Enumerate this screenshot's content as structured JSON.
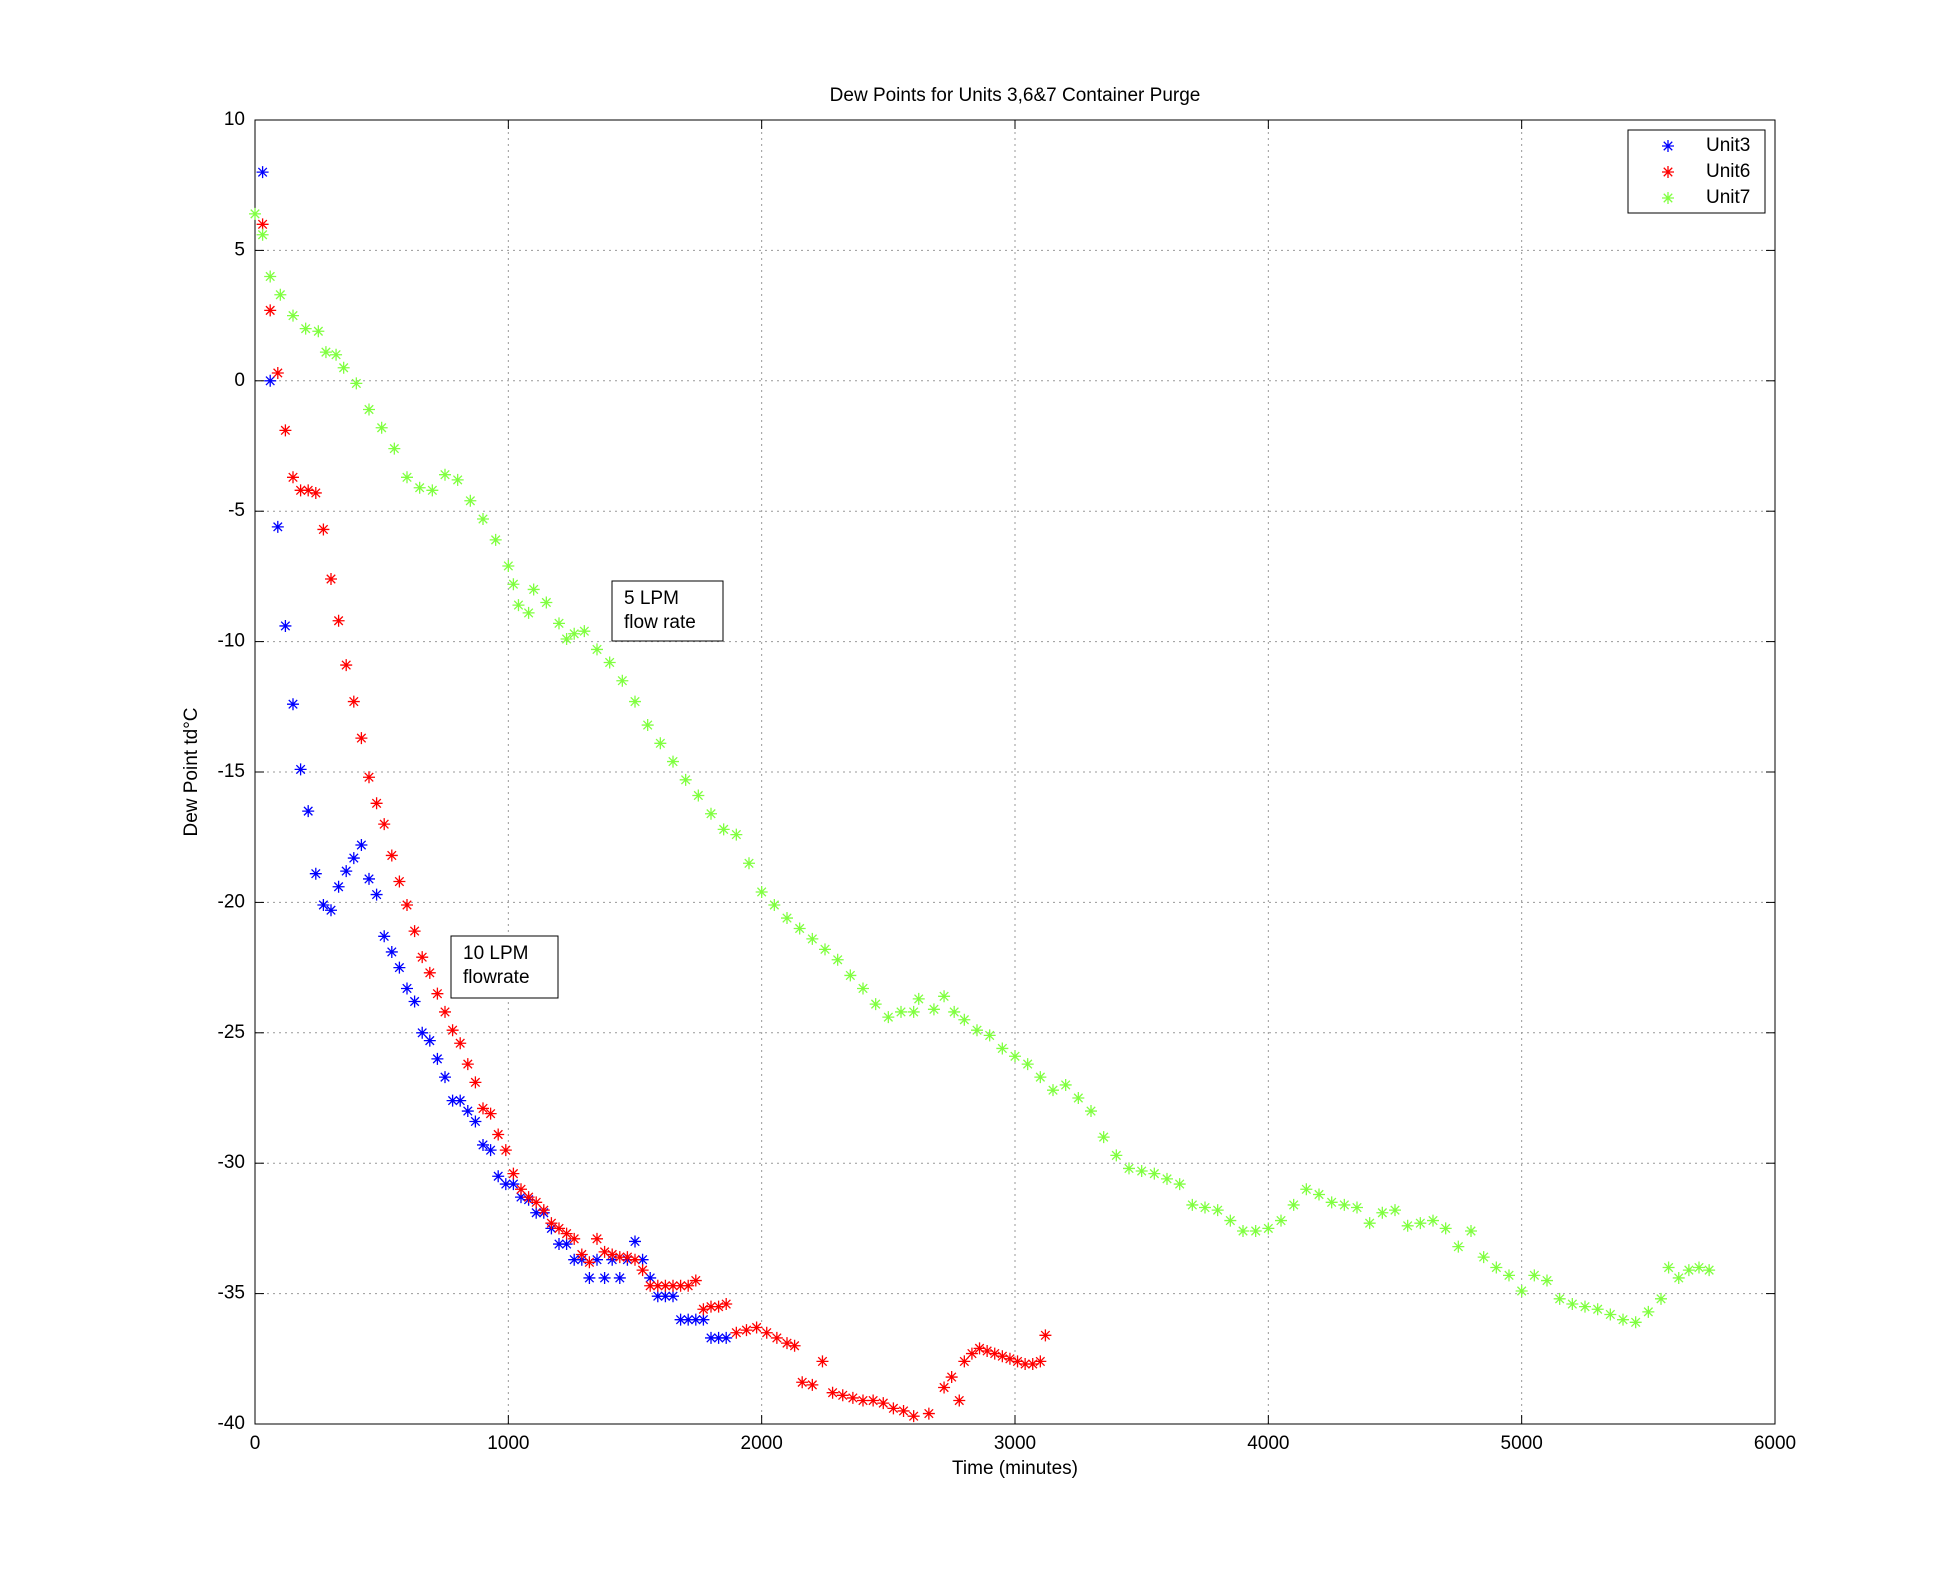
{
  "chart_data": {
    "type": "scatter",
    "title": "Dew Points for Units 3,6&7 Container Purge",
    "x_label": "Time (minutes)",
    "y_label": "Dew Point td°C",
    "xlim": [
      0,
      6000
    ],
    "xticks": [
      0,
      1000,
      2000,
      3000,
      4000,
      5000,
      6000
    ],
    "ylim": [
      -40,
      10
    ],
    "yticks": [
      -40,
      -35,
      -30,
      -25,
      -20,
      -15,
      -10,
      -5,
      0,
      5,
      10
    ],
    "grid": true,
    "legend": "top-right",
    "marker": "asterisk",
    "annotations": [
      {
        "lines": [
          "5 LPM",
          "flow rate"
        ]
      },
      {
        "lines": [
          "10 LPM",
          "flowrate"
        ]
      }
    ],
    "series": [
      {
        "name": "Unit3",
        "color": "#0000ff",
        "x": [
          30,
          60,
          90,
          120,
          150,
          180,
          210,
          240,
          270,
          300,
          330,
          360,
          390,
          420,
          450,
          480,
          510,
          540,
          570,
          600,
          630,
          660,
          690,
          720,
          750,
          780,
          810,
          840,
          870,
          900,
          930,
          960,
          990,
          1020,
          1050,
          1080,
          1110,
          1140,
          1170,
          1200,
          1230,
          1260,
          1290,
          1320,
          1350,
          1380,
          1410,
          1440,
          1470,
          1500,
          1530,
          1560,
          1590,
          1620,
          1650,
          1680,
          1710,
          1740,
          1770,
          1800,
          1830,
          1860
        ],
        "values": [
          8,
          0,
          -5.6,
          -9.4,
          -12.4,
          -14.9,
          -16.5,
          -18.9,
          -20.1,
          -20.3,
          -19.4,
          -18.8,
          -18.3,
          -17.8,
          -19.1,
          -19.7,
          -21.3,
          -21.9,
          -22.5,
          -23.3,
          -23.8,
          -25,
          -25.3,
          -26,
          -26.7,
          -27.6,
          -27.6,
          -28,
          -28.4,
          -29.3,
          -29.5,
          -30.5,
          -30.8,
          -30.8,
          -31.3,
          -31.4,
          -31.9,
          -31.9,
          -32.5,
          -33.1,
          -33.1,
          -33.7,
          -33.7,
          -34.4,
          -33.7,
          -34.4,
          -33.7,
          -34.4,
          -33.7,
          -33,
          -33.7,
          -34.4,
          -35.1,
          -35.1,
          -35.1,
          -36,
          -36,
          -36,
          -36,
          -36.7,
          -36.7,
          -36.7
        ]
      },
      {
        "name": "Unit6",
        "color": "#ff0000",
        "x": [
          30,
          60,
          90,
          120,
          150,
          180,
          210,
          240,
          270,
          300,
          330,
          360,
          390,
          420,
          450,
          480,
          510,
          540,
          570,
          600,
          630,
          660,
          690,
          720,
          750,
          780,
          810,
          840,
          870,
          900,
          930,
          960,
          990,
          1020,
          1050,
          1080,
          1110,
          1140,
          1170,
          1200,
          1230,
          1260,
          1290,
          1320,
          1350,
          1380,
          1410,
          1440,
          1470,
          1500,
          1530,
          1560,
          1590,
          1620,
          1650,
          1680,
          1710,
          1740,
          1770,
          1800,
          1830,
          1860,
          1900,
          1940,
          1980,
          2020,
          2060,
          2100,
          2130,
          2160,
          2200,
          2240,
          2280,
          2320,
          2360,
          2400,
          2440,
          2480,
          2520,
          2560,
          2600,
          2660,
          2720,
          2750,
          2780,
          2800,
          2830,
          2860,
          2890,
          2920,
          2950,
          2980,
          3010,
          3040,
          3070,
          3100,
          3120
        ],
        "values": [
          6,
          2.7,
          0.3,
          -1.9,
          -3.7,
          -4.2,
          -4.2,
          -4.3,
          -5.7,
          -7.6,
          -9.2,
          -10.9,
          -12.3,
          -13.7,
          -15.2,
          -16.2,
          -17,
          -18.2,
          -19.2,
          -20.1,
          -21.1,
          -22.1,
          -22.7,
          -23.5,
          -24.2,
          -24.9,
          -25.4,
          -26.2,
          -26.9,
          -27.9,
          -28.1,
          -28.9,
          -29.5,
          -30.4,
          -31,
          -31.3,
          -31.5,
          -31.8,
          -32.3,
          -32.5,
          -32.7,
          -32.9,
          -33.5,
          -33.8,
          -32.9,
          -33.4,
          -33.5,
          -33.6,
          -33.6,
          -33.7,
          -34.1,
          -34.7,
          -34.7,
          -34.7,
          -34.7,
          -34.7,
          -34.7,
          -34.5,
          -35.6,
          -35.5,
          -35.5,
          -35.4,
          -36.5,
          -36.4,
          -36.3,
          -36.5,
          -36.7,
          -36.9,
          -37,
          -38.4,
          -38.5,
          -37.6,
          -38.8,
          -38.9,
          -39,
          -39.1,
          -39.1,
          -39.2,
          -39.4,
          -39.5,
          -39.7,
          -39.6,
          -38.6,
          -38.2,
          -39.1,
          -37.6,
          -37.3,
          -37.1,
          -37.2,
          -37.3,
          -37.4,
          -37.5,
          -37.6,
          -37.7,
          -37.7,
          -37.6,
          -36.6
        ]
      },
      {
        "name": "Unit7",
        "color": "#80ff40",
        "x": [
          0,
          30,
          60,
          100,
          150,
          200,
          250,
          280,
          320,
          350,
          400,
          450,
          500,
          550,
          600,
          650,
          700,
          750,
          800,
          850,
          900,
          950,
          1000,
          1020,
          1040,
          1080,
          1100,
          1150,
          1200,
          1230,
          1260,
          1300,
          1350,
          1400,
          1450,
          1500,
          1550,
          1600,
          1650,
          1700,
          1750,
          1800,
          1850,
          1900,
          1950,
          2000,
          2050,
          2100,
          2150,
          2200,
          2250,
          2300,
          2350,
          2400,
          2450,
          2500,
          2550,
          2600,
          2620,
          2680,
          2720,
          2760,
          2800,
          2850,
          2900,
          2950,
          3000,
          3050,
          3100,
          3150,
          3200,
          3250,
          3300,
          3350,
          3400,
          3450,
          3500,
          3550,
          3600,
          3650,
          3700,
          3750,
          3800,
          3850,
          3900,
          3950,
          4000,
          4050,
          4100,
          4150,
          4200,
          4250,
          4300,
          4350,
          4400,
          4450,
          4500,
          4550,
          4600,
          4650,
          4700,
          4750,
          4800,
          4850,
          4900,
          4950,
          5000,
          5050,
          5100,
          5150,
          5200,
          5250,
          5300,
          5350,
          5400,
          5450,
          5500,
          5550,
          5580,
          5620,
          5660,
          5700,
          5740
        ],
        "values": [
          6.4,
          5.6,
          4,
          3.3,
          2.5,
          2,
          1.9,
          1.1,
          1,
          0.5,
          -0.1,
          -1.1,
          -1.8,
          -2.6,
          -3.7,
          -4.1,
          -4.2,
          -3.6,
          -3.8,
          -4.6,
          -5.3,
          -6.1,
          -7.1,
          -7.8,
          -8.6,
          -8.9,
          -8,
          -8.5,
          -9.3,
          -9.9,
          -9.7,
          -9.6,
          -10.3,
          -10.8,
          -11.5,
          -12.3,
          -13.2,
          -13.9,
          -14.6,
          -15.3,
          -15.9,
          -16.6,
          -17.2,
          -17.4,
          -18.5,
          -19.6,
          -20.1,
          -20.6,
          -21,
          -21.4,
          -21.8,
          -22.2,
          -22.8,
          -23.3,
          -23.9,
          -24.4,
          -24.2,
          -24.2,
          -23.7,
          -24.1,
          -23.6,
          -24.2,
          -24.5,
          -24.9,
          -25.1,
          -25.6,
          -25.9,
          -26.2,
          -26.7,
          -27.2,
          -27,
          -27.5,
          -28,
          -29,
          -29.7,
          -30.2,
          -30.3,
          -30.4,
          -30.6,
          -30.8,
          -31.6,
          -31.7,
          -31.8,
          -32.2,
          -32.6,
          -32.6,
          -32.5,
          -32.2,
          -31.6,
          -31,
          -31.2,
          -31.5,
          -31.6,
          -31.7,
          -32.3,
          -31.9,
          -31.8,
          -32.4,
          -32.3,
          -32.2,
          -32.5,
          -33.2,
          -32.6,
          -33.6,
          -34,
          -34.3,
          -34.9,
          -34.3,
          -34.5,
          -35.2,
          -35.4,
          -35.5,
          -35.6,
          -35.8,
          -36,
          -36.1,
          -35.7,
          -35.2,
          -34,
          -34.4,
          -34.1,
          -34,
          -34.1
        ]
      }
    ]
  }
}
